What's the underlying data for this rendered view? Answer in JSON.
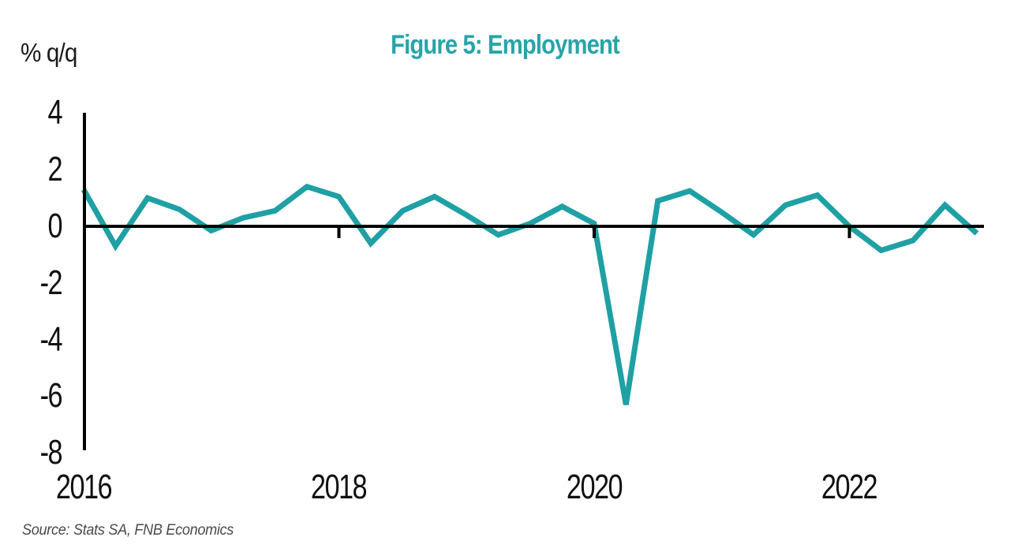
{
  "page": {
    "background": "#ffffff"
  },
  "header": {
    "title": "Figure 5: Employment",
    "y_axis_unit_label": "% q/q"
  },
  "footer": {
    "source": "Source: Stats SA, FNB Economics"
  },
  "colors": {
    "title": "#29a4a9",
    "line": "#1fa0a4",
    "axis": "#000000",
    "source_text": "#4a4a4a"
  },
  "chart_data": {
    "type": "line",
    "title": "Figure 5: Employment",
    "ylabel": "% q/q",
    "xlabel": "",
    "grid": false,
    "legend": "none",
    "ylim": [
      -8,
      4
    ],
    "y_ticks": [
      4,
      2,
      0,
      -2,
      -4,
      -6,
      -8
    ],
    "x_tick_labels": [
      "2016",
      "2018",
      "2020",
      "2022"
    ],
    "x_tick_indices": [
      0,
      8,
      16,
      24
    ],
    "tick_mark_indices": [
      8,
      16,
      24
    ],
    "x": [
      "2016Q1",
      "2016Q2",
      "2016Q3",
      "2016Q4",
      "2017Q1",
      "2017Q2",
      "2017Q3",
      "2017Q4",
      "2018Q1",
      "2018Q2",
      "2018Q3",
      "2018Q4",
      "2019Q1",
      "2019Q2",
      "2019Q3",
      "2019Q4",
      "2020Q1",
      "2020Q2",
      "2020Q3",
      "2020Q4",
      "2021Q1",
      "2021Q2",
      "2021Q3",
      "2021Q4",
      "2022Q1",
      "2022Q2",
      "2022Q3",
      "2022Q4",
      "2023Q1"
    ],
    "series": [
      {
        "name": "Employment, % q/q",
        "color": "#1fa0a4",
        "values": [
          1.3,
          -0.7,
          1.0,
          0.6,
          -0.15,
          0.3,
          0.55,
          1.4,
          1.05,
          -0.6,
          0.55,
          1.05,
          0.4,
          -0.3,
          0.1,
          0.7,
          0.1,
          -6.3,
          0.9,
          1.25,
          0.5,
          -0.3,
          0.75,
          1.1,
          0.0,
          -0.85,
          -0.5,
          0.75,
          -0.25
        ]
      }
    ]
  }
}
